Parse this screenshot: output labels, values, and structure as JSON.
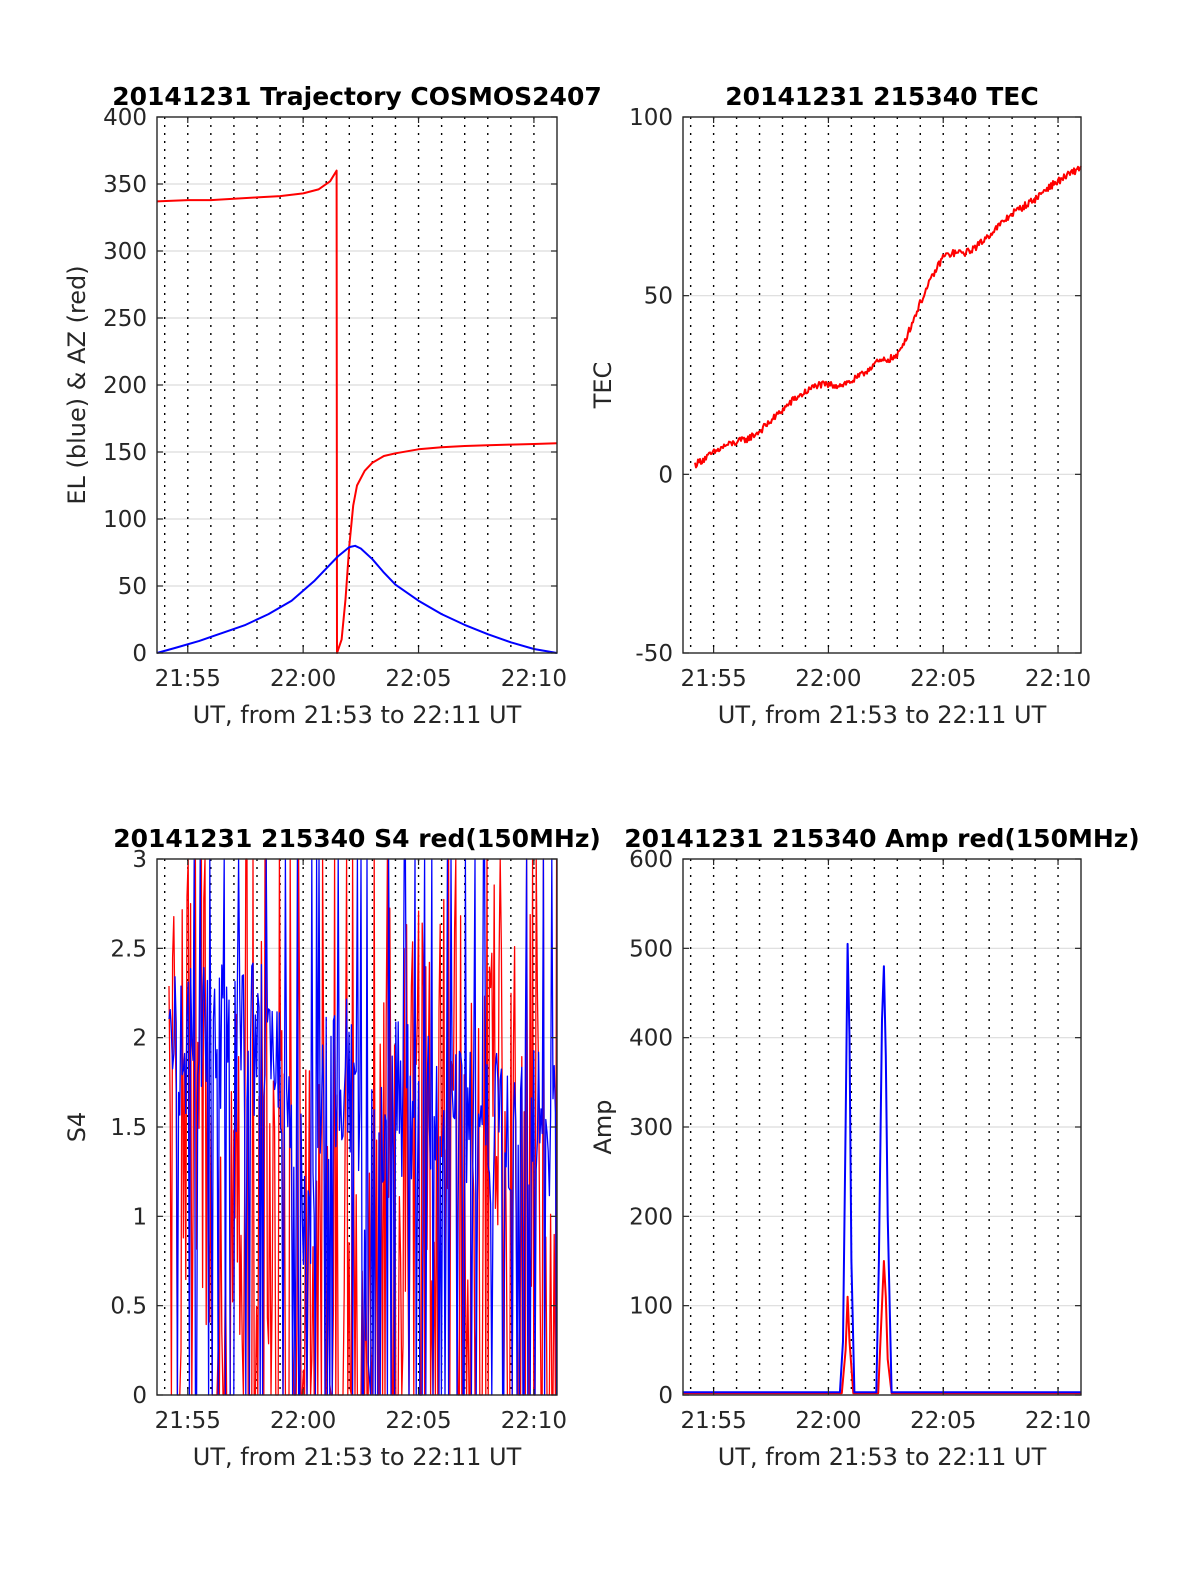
{
  "chart_data": [
    {
      "id": "trajectory",
      "type": "line",
      "title": "20141231 Trajectory COSMOS2407",
      "xlabel": "UT, from 21:53 to 22:11 UT",
      "ylabel": "EL (blue) & AZ (red)",
      "xlim": [
        "21:53:40",
        "22:11:00"
      ],
      "ylim": [
        0,
        400
      ],
      "yticks": [
        0,
        50,
        100,
        150,
        200,
        250,
        300,
        350,
        400
      ],
      "xticks": [
        "21:55",
        "22:00",
        "22:05",
        "22:10"
      ],
      "grid": true,
      "series": [
        {
          "color": "#ff0000",
          "kind": "line",
          "x": [
            "21:53:40",
            "21:55:00",
            "21:56:00",
            "21:57:00",
            "21:58:00",
            "21:59:00",
            "22:00:00",
            "22:00:40",
            "22:01:10",
            "22:01:27",
            "22:01:28",
            "22:01:40",
            "22:01:50",
            "22:02:00",
            "22:02:10",
            "22:02:20",
            "22:02:40",
            "22:03:00",
            "22:03:30",
            "22:04:00",
            "22:05:00",
            "22:06:00",
            "22:07:00",
            "22:08:00",
            "22:09:00",
            "22:10:00",
            "22:11:00"
          ],
          "y": [
            337,
            338,
            338,
            339,
            340,
            341,
            343,
            346,
            352,
            360,
            0,
            10,
            40,
            80,
            110,
            125,
            136,
            142,
            147,
            149,
            152,
            153.5,
            154.5,
            155,
            155.5,
            156,
            156.5
          ]
        },
        {
          "color": "#0000ff",
          "kind": "line",
          "x": [
            "21:53:40",
            "21:54:30",
            "21:55:30",
            "21:56:30",
            "21:57:30",
            "21:58:30",
            "21:59:30",
            "22:00:30",
            "22:01:00",
            "22:01:30",
            "22:02:00",
            "22:02:15",
            "22:02:30",
            "22:03:00",
            "22:03:30",
            "22:04:00",
            "22:05:00",
            "22:06:00",
            "22:07:00",
            "22:08:00",
            "22:09:00",
            "22:10:00",
            "22:11:00"
          ],
          "y": [
            0,
            4,
            9,
            15,
            21,
            29,
            39,
            54,
            63,
            72,
            79,
            80,
            78,
            70,
            60,
            51,
            39,
            29,
            21,
            14,
            8,
            3,
            0
          ]
        }
      ]
    },
    {
      "id": "tec",
      "type": "line",
      "title": "20141231 215340 TEC",
      "xlabel": "UT, from 21:53 to 22:11 UT",
      "ylabel": "TEC",
      "xlim": [
        "21:53:40",
        "22:11:00"
      ],
      "ylim": [
        -50,
        100
      ],
      "yticks": [
        -50,
        0,
        50,
        100
      ],
      "xticks": [
        "21:55",
        "22:00",
        "22:05",
        "22:10"
      ],
      "grid": true,
      "series": [
        {
          "color": "#ff0000",
          "kind": "noisy",
          "noise": 1.0,
          "x": [
            "21:53:40",
            "21:54:00",
            "21:54:30",
            "21:55:00",
            "21:55:30",
            "21:56:00",
            "21:56:30",
            "21:57:00",
            "21:57:30",
            "21:58:00",
            "21:58:30",
            "21:59:00",
            "21:59:30",
            "22:00:00",
            "22:00:30",
            "22:01:00",
            "22:01:30",
            "22:02:00",
            "22:02:30",
            "22:03:00",
            "22:03:30",
            "22:04:00",
            "22:04:30",
            "22:05:00",
            "22:05:30",
            "22:06:00",
            "22:06:30",
            "22:07:00",
            "22:07:30",
            "22:08:00",
            "22:08:30",
            "22:09:00",
            "22:09:30",
            "22:10:00",
            "22:10:30",
            "22:11:00"
          ],
          "y": [
            0,
            2,
            4,
            6,
            8,
            9,
            10,
            12,
            15,
            18,
            21,
            23,
            25,
            25,
            25,
            26,
            28,
            31,
            32,
            33,
            40,
            48,
            55,
            61,
            62,
            62,
            64,
            67,
            70,
            73,
            75,
            77,
            80,
            82,
            84,
            86
          ]
        }
      ]
    },
    {
      "id": "s4",
      "type": "line",
      "title": "20141231 215340 S4 red(150MHz)",
      "xlabel": "UT, from 21:53 to 22:11 UT",
      "ylabel": "S4",
      "xlim": [
        "21:53:40",
        "22:11:00"
      ],
      "ylim": [
        0,
        3
      ],
      "yticks": [
        0,
        0.5,
        1,
        1.5,
        2,
        2.5,
        3
      ],
      "xticks": [
        "21:55",
        "22:00",
        "22:05",
        "22:10"
      ],
      "grid": true,
      "series": [
        {
          "color": "#ff0000",
          "kind": "spiky",
          "noise": 1.3,
          "drop": 0.35,
          "x": [
            "21:53:40",
            "21:55:00",
            "21:56:00",
            "21:57:00",
            "21:58:00",
            "21:59:00",
            "21:59:30",
            "22:00:00",
            "22:00:30",
            "22:01:00",
            "22:01:30",
            "22:02:00",
            "22:02:30",
            "22:02:45",
            "22:03:00",
            "22:04:00",
            "22:05:00",
            "22:06:00",
            "22:07:00",
            "22:08:00",
            "22:09:00",
            "22:10:00",
            "22:11:00"
          ],
          "y": [
            1.5,
            1.5,
            1.5,
            1.4,
            1.3,
            1.2,
            1.0,
            0.9,
            0.8,
            0.7,
            0.5,
            0.6,
            0.7,
            0.1,
            1.2,
            1.5,
            1.5,
            1.6,
            1.6,
            1.6,
            1.6,
            1.6,
            1.6
          ]
        },
        {
          "color": "#0000ff",
          "kind": "spiky",
          "noise": 0.45,
          "drop": 0.22,
          "x": [
            "21:53:40",
            "21:55:00",
            "21:56:00",
            "21:57:00",
            "21:58:00",
            "21:59:00",
            "21:59:30",
            "22:00:00",
            "22:00:20",
            "22:00:30",
            "22:01:00",
            "22:02:00",
            "22:02:40",
            "22:02:50",
            "22:03:00",
            "22:04:00",
            "22:05:00",
            "22:06:00",
            "22:07:00",
            "22:08:00",
            "22:09:00",
            "22:10:00",
            "22:11:00"
          ],
          "y": [
            2.0,
            2.0,
            2.1,
            1.9,
            2.0,
            1.8,
            1.5,
            1.2,
            0.6,
            1.3,
            1.7,
            1.8,
            1.0,
            0.1,
            1.5,
            1.7,
            1.6,
            1.5,
            1.5,
            1.5,
            1.5,
            1.6,
            1.5
          ]
        }
      ]
    },
    {
      "id": "amp",
      "type": "line",
      "title": "20141231 215340 Amp red(150MHz)",
      "xlabel": "UT, from 21:53 to 22:11 UT",
      "ylabel": "Amp",
      "xlim": [
        "21:53:40",
        "22:11:00"
      ],
      "ylim": [
        0,
        600
      ],
      "yticks": [
        0,
        100,
        200,
        300,
        400,
        500,
        600
      ],
      "xticks": [
        "21:55",
        "22:00",
        "22:05",
        "22:10"
      ],
      "grid": true,
      "series": [
        {
          "color": "#ff0000",
          "kind": "line",
          "x": [
            "21:53:40",
            "22:00:35",
            "22:00:45",
            "22:00:50",
            "22:00:55",
            "22:01:05",
            "22:02:10",
            "22:02:18",
            "22:02:25",
            "22:02:30",
            "22:02:35",
            "22:02:45",
            "22:11:00"
          ],
          "y": [
            2,
            2,
            50,
            110,
            60,
            2,
            2,
            80,
            150,
            110,
            40,
            2,
            2
          ]
        },
        {
          "color": "#0000ff",
          "kind": "line",
          "x": [
            "21:53:40",
            "22:00:30",
            "22:00:38",
            "22:00:45",
            "22:00:50",
            "22:00:55",
            "22:01:00",
            "22:01:08",
            "22:02:05",
            "22:02:12",
            "22:02:20",
            "22:02:25",
            "22:02:30",
            "22:02:35",
            "22:02:45",
            "22:11:00"
          ],
          "y": [
            3,
            3,
            60,
            300,
            505,
            400,
            150,
            3,
            3,
            150,
            420,
            480,
            380,
            200,
            3,
            3
          ]
        }
      ]
    }
  ]
}
